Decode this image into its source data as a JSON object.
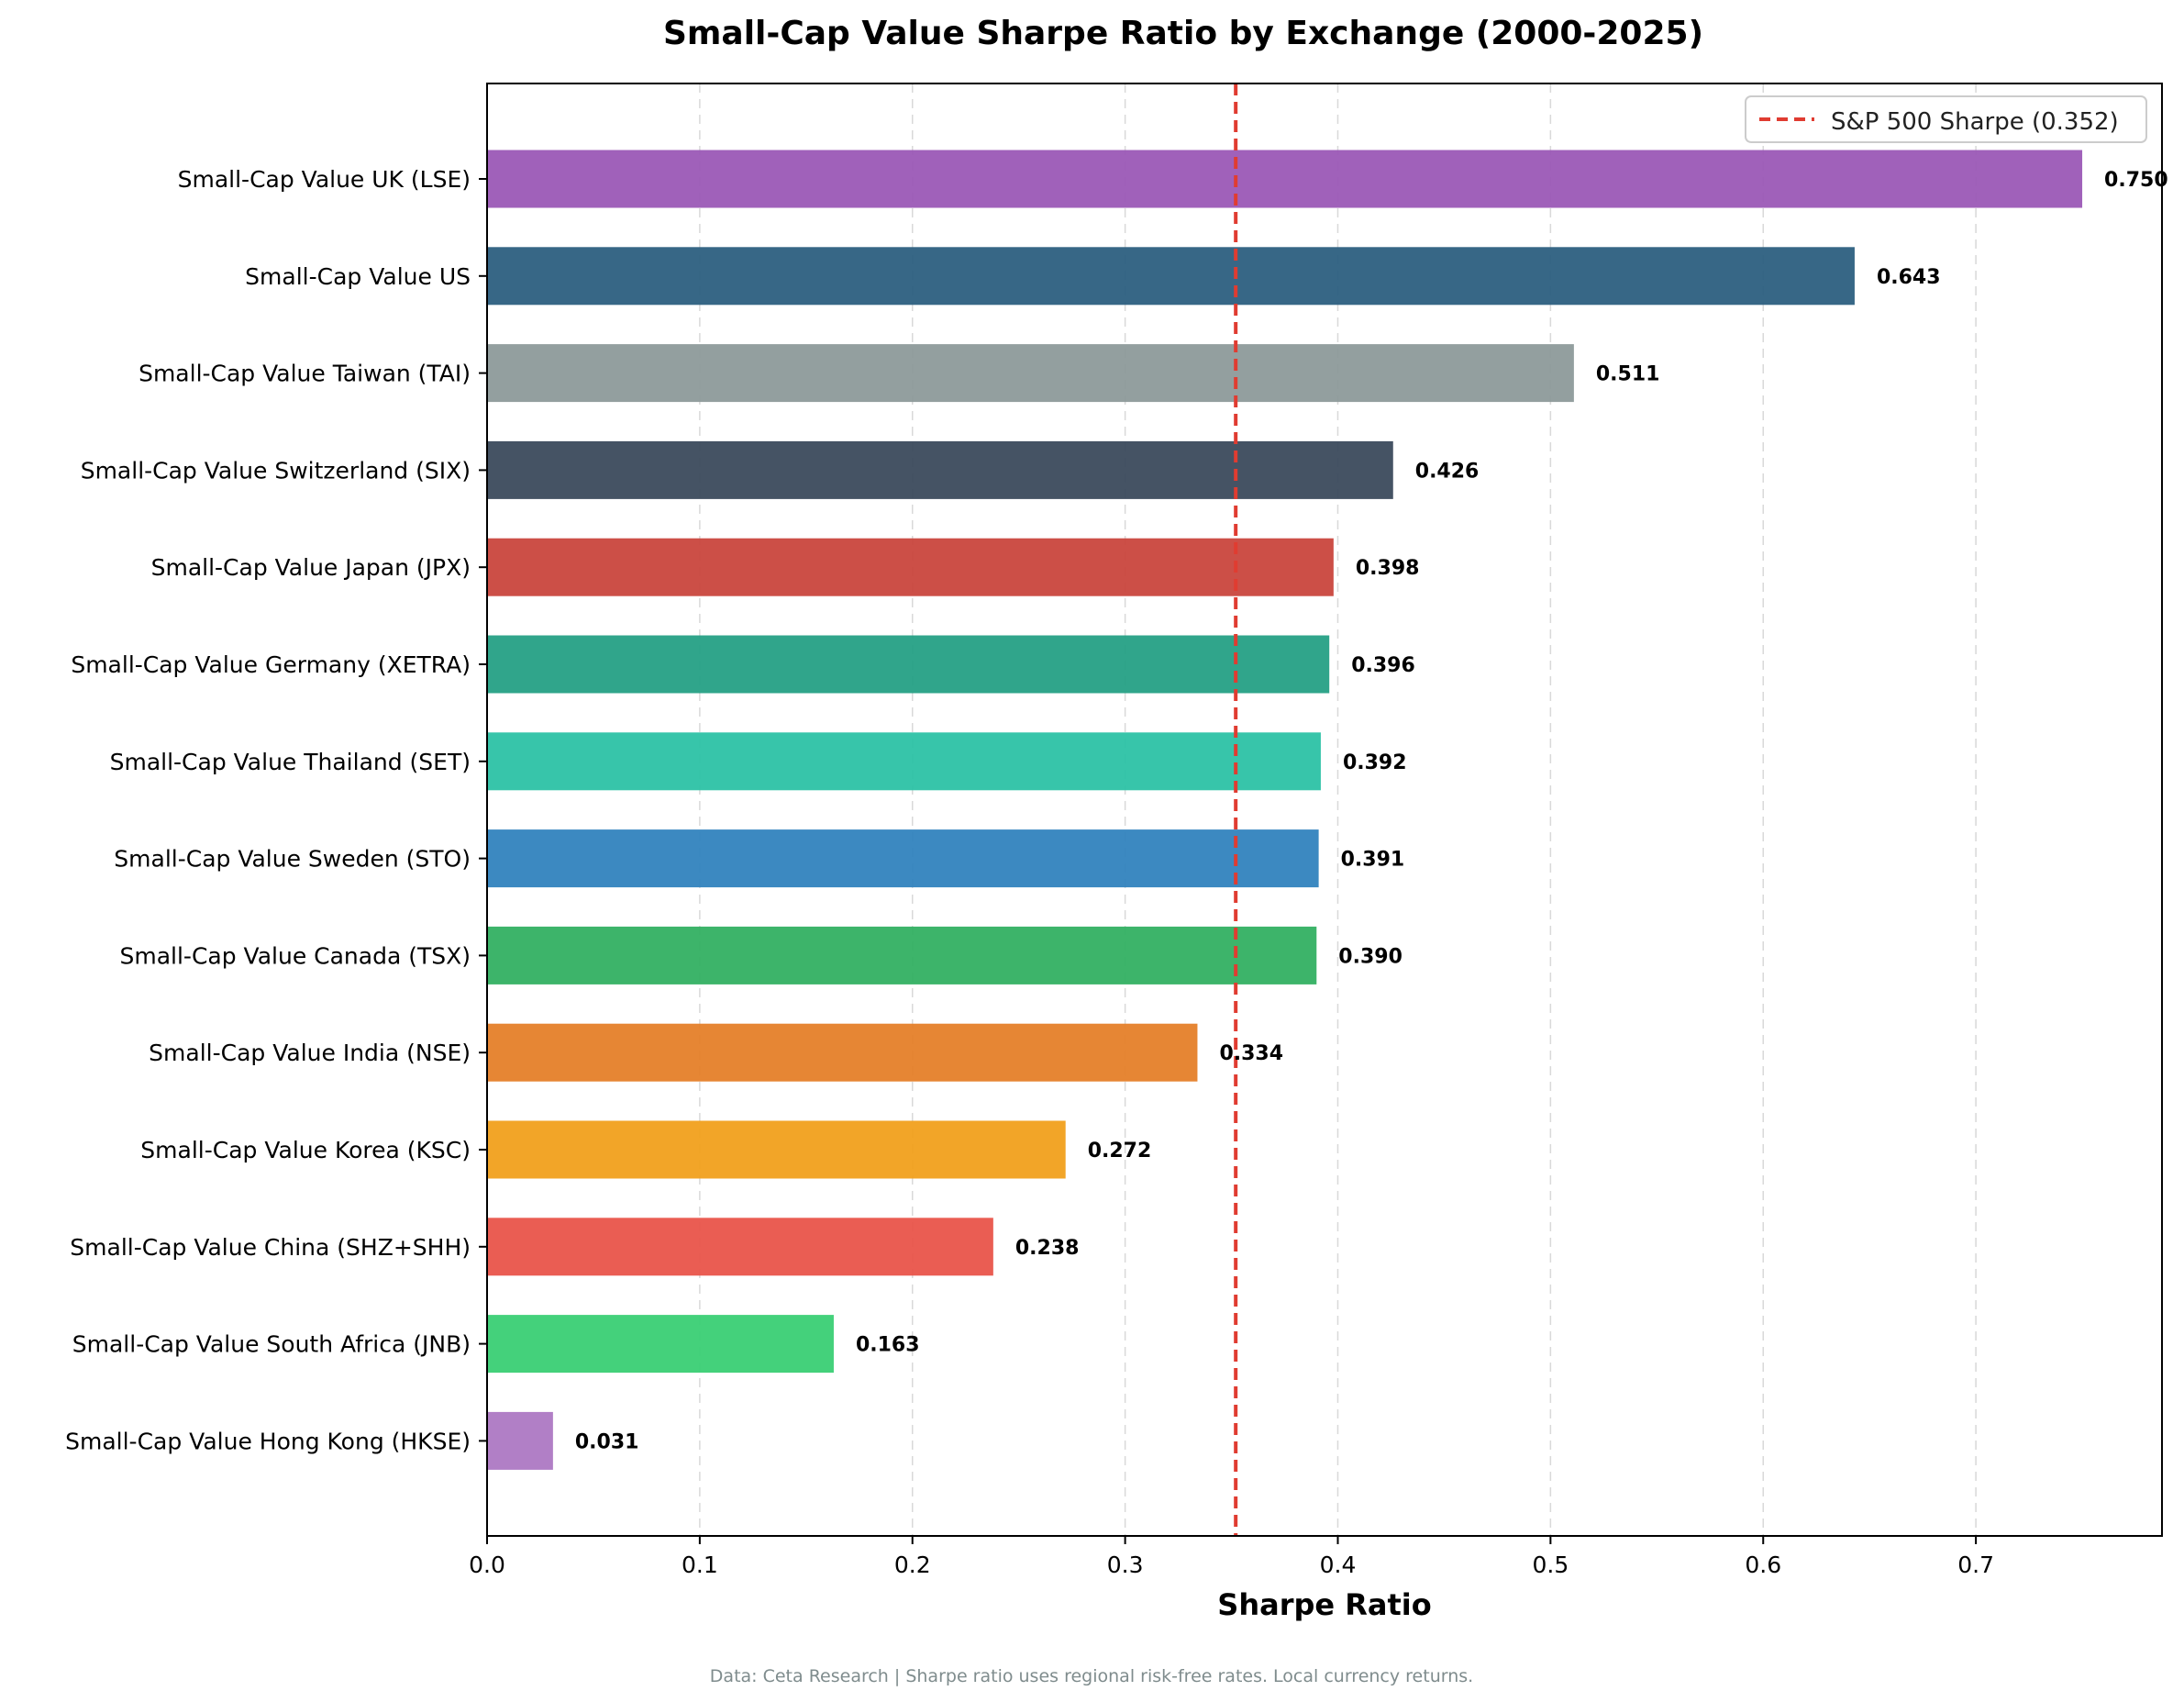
{
  "chart_data": {
    "type": "bar",
    "orientation": "horizontal",
    "title": "Small-Cap Value Sharpe Ratio by Exchange (2000-2025)",
    "xlabel": "Sharpe Ratio",
    "ylabel": "",
    "xlim": [
      0,
      0.7875
    ],
    "xticks": [
      0.0,
      0.1,
      0.2,
      0.3,
      0.4,
      0.5,
      0.6,
      0.7
    ],
    "xtick_labels": [
      "0.0",
      "0.1",
      "0.2",
      "0.3",
      "0.4",
      "0.5",
      "0.6",
      "0.7"
    ],
    "grid": "x-axis dashed",
    "legend_position": "top-right",
    "categories": [
      "Small-Cap Value UK (LSE)",
      "Small-Cap Value US",
      "Small-Cap Value Taiwan (TAI)",
      "Small-Cap Value Switzerland (SIX)",
      "Small-Cap Value Japan (JPX)",
      "Small-Cap Value Germany (XETRA)",
      "Small-Cap Value Thailand (SET)",
      "Small-Cap Value Sweden (STO)",
      "Small-Cap Value Canada (TSX)",
      "Small-Cap Value India (NSE)",
      "Small-Cap Value Korea (KSC)",
      "Small-Cap Value China (SHZ+SHH)",
      "Small-Cap Value South Africa (JNB)",
      "Small-Cap Value Hong Kong (HKSE)"
    ],
    "values": [
      0.75,
      0.643,
      0.511,
      0.426,
      0.398,
      0.396,
      0.392,
      0.391,
      0.39,
      0.334,
      0.272,
      0.238,
      0.163,
      0.031
    ],
    "value_labels": [
      "0.750",
      "0.643",
      "0.511",
      "0.426",
      "0.398",
      "0.396",
      "0.392",
      "0.391",
      "0.390",
      "0.334",
      "0.272",
      "0.238",
      "0.163",
      "0.031"
    ],
    "colors": [
      "#9b59b6",
      "#2c5f7f",
      "#8d9a9a",
      "#3b4a5c",
      "#c9463d",
      "#25a085",
      "#2cc2a5",
      "#3283be",
      "#33b062",
      "#e58029",
      "#f1a01c",
      "#e9544a",
      "#3acf74",
      "#ad78c3"
    ],
    "reference_line": {
      "value": 0.352,
      "label": "S&P 500 Sharpe (0.352)",
      "color": "#e03c31",
      "style": "dashed"
    },
    "footnote": "Data: Ceta Research | Sharpe ratio uses regional risk-free rates. Local currency returns."
  }
}
